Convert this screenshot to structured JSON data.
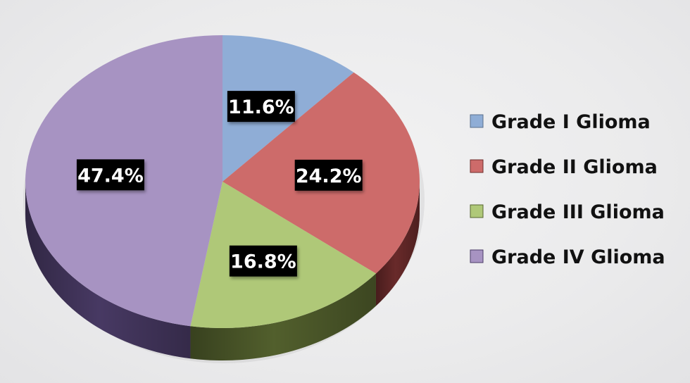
{
  "chart_data": {
    "type": "pie",
    "style": "3d",
    "legend_position": "right",
    "slices": [
      {
        "label": "Grade I Glioma",
        "value": 11.6,
        "display": "11.6%",
        "color": "#8fadd6",
        "side_color": "#5a6f8c"
      },
      {
        "label": "Grade II Glioma",
        "value": 24.2,
        "display": "24.2%",
        "color": "#cd6b6a",
        "side_color": "#6e2c2c"
      },
      {
        "label": "Grade III Glioma",
        "value": 16.8,
        "display": "16.8%",
        "color": "#afc878",
        "side_color": "#56642f"
      },
      {
        "label": "Grade IV Glioma",
        "value": 47.4,
        "display": "47.4%",
        "color": "#a793c2",
        "side_color": "#4b3c68"
      }
    ]
  }
}
